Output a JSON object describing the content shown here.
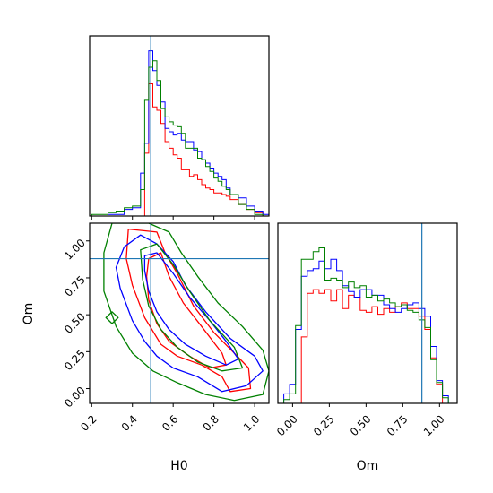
{
  "chart_data": {
    "type": "corner",
    "parameters": [
      "H0",
      "Om"
    ],
    "xlabel_bottom_left": "H0",
    "ylabel_bottom_left": "Om",
    "xlabel_bottom_right": "Om",
    "truth": {
      "H0": 0.49,
      "Om": 0.88,
      "line_color": "#1f77b4"
    },
    "series_colors": [
      "#ff0000",
      "#0000ff",
      "#008000"
    ],
    "h0_ticks": [
      "0.2",
      "0.4",
      "0.6",
      "0.8",
      "1.0"
    ],
    "om_ticks": [
      "0.00",
      "0.25",
      "0.50",
      "0.75",
      "1.00"
    ],
    "h0_range": [
      0.19,
      1.07
    ],
    "om_range": [
      -0.1,
      1.12
    ],
    "hist_h0": {
      "edges": [
        0.16,
        0.2,
        0.24,
        0.28,
        0.32,
        0.36,
        0.4,
        0.44,
        0.46,
        0.48,
        0.5,
        0.52,
        0.54,
        0.56,
        0.58,
        0.6,
        0.62,
        0.64,
        0.66,
        0.68,
        0.7,
        0.72,
        0.74,
        0.76,
        0.78,
        0.8,
        0.82,
        0.84,
        0.86,
        0.88,
        0.92,
        0.96,
        1.0,
        1.04,
        1.08
      ],
      "series": [
        {
          "values": [
            0,
            0,
            0,
            0,
            0,
            0,
            0,
            0,
            0.38,
            0.8,
            0.66,
            0.64,
            0.56,
            0.45,
            0.41,
            0.37,
            0.35,
            0.28,
            0.28,
            0.24,
            0.25,
            0.22,
            0.19,
            0.17,
            0.16,
            0.14,
            0.14,
            0.13,
            0.12,
            0.1,
            0.07,
            0.04,
            0.02,
            0.0
          ]
        },
        {
          "values": [
            0,
            0,
            0,
            0.01,
            0.01,
            0.04,
            0.05,
            0.26,
            0.44,
            1.0,
            0.88,
            0.79,
            0.69,
            0.53,
            0.51,
            0.49,
            0.5,
            0.46,
            0.45,
            0.45,
            0.4,
            0.39,
            0.34,
            0.32,
            0.29,
            0.26,
            0.24,
            0.22,
            0.17,
            0.13,
            0.11,
            0.06,
            0.03,
            0.01
          ]
        },
        {
          "values": [
            0,
            0.01,
            0.01,
            0.02,
            0.03,
            0.05,
            0.06,
            0.16,
            0.7,
            0.9,
            0.94,
            0.82,
            0.65,
            0.6,
            0.57,
            0.55,
            0.54,
            0.5,
            0.41,
            0.41,
            0.41,
            0.35,
            0.34,
            0.3,
            0.27,
            0.23,
            0.21,
            0.18,
            0.16,
            0.13,
            0.07,
            0.04,
            0.01,
            0.0
          ]
        }
      ],
      "ymax": 1.09
    },
    "hist_om": {
      "edges": [
        -0.1,
        -0.06,
        -0.02,
        0.02,
        0.06,
        0.1,
        0.14,
        0.18,
        0.22,
        0.26,
        0.3,
        0.34,
        0.38,
        0.42,
        0.46,
        0.5,
        0.54,
        0.58,
        0.62,
        0.66,
        0.7,
        0.74,
        0.78,
        0.82,
        0.86,
        0.9,
        0.94,
        0.98,
        1.02,
        1.06,
        1.1
      ],
      "series": [
        {
          "values": [
            0,
            0,
            0,
            0,
            0.35,
            0.58,
            0.6,
            0.58,
            0.6,
            0.54,
            0.6,
            0.5,
            0.57,
            0.56,
            0.49,
            0.48,
            0.51,
            0.47,
            0.5,
            0.48,
            0.51,
            0.53,
            0.5,
            0.5,
            0.46,
            0.39,
            0.24,
            0.1,
            0.0,
            0.0
          ]
        },
        {
          "values": [
            0,
            0.05,
            0.1,
            0.39,
            0.67,
            0.7,
            0.71,
            0.75,
            0.71,
            0.76,
            0.7,
            0.62,
            0.59,
            0.56,
            0.6,
            0.6,
            0.57,
            0.57,
            0.52,
            0.5,
            0.48,
            0.5,
            0.52,
            0.53,
            0.5,
            0.46,
            0.3,
            0.12,
            0.04,
            0.0
          ]
        },
        {
          "values": [
            0,
            0.02,
            0.05,
            0.41,
            0.76,
            0.76,
            0.8,
            0.82,
            0.65,
            0.66,
            0.65,
            0.61,
            0.64,
            0.61,
            0.62,
            0.56,
            0.57,
            0.54,
            0.55,
            0.53,
            0.51,
            0.52,
            0.49,
            0.48,
            0.44,
            0.4,
            0.23,
            0.11,
            0.03,
            0.0
          ]
        }
      ],
      "ymax": 0.95
    },
    "contours": [
      {
        "series": 0,
        "points": [
          [
            0.38,
            1.08
          ],
          [
            0.52,
            1.06
          ],
          [
            0.56,
            0.92
          ],
          [
            0.62,
            0.78
          ],
          [
            0.7,
            0.56
          ],
          [
            0.8,
            0.38
          ],
          [
            0.9,
            0.24
          ],
          [
            0.97,
            0.14
          ],
          [
            0.98,
            0.0
          ],
          [
            0.88,
            -0.02
          ],
          [
            0.84,
            0.08
          ],
          [
            0.74,
            0.16
          ],
          [
            0.62,
            0.22
          ],
          [
            0.54,
            0.3
          ],
          [
            0.46,
            0.48
          ],
          [
            0.4,
            0.7
          ],
          [
            0.37,
            0.88
          ]
        ]
      },
      {
        "series": 0,
        "points": [
          [
            0.48,
            0.88
          ],
          [
            0.54,
            0.92
          ],
          [
            0.58,
            0.76
          ],
          [
            0.65,
            0.58
          ],
          [
            0.74,
            0.42
          ],
          [
            0.84,
            0.24
          ],
          [
            0.86,
            0.16
          ],
          [
            0.78,
            0.14
          ],
          [
            0.68,
            0.22
          ],
          [
            0.58,
            0.32
          ],
          [
            0.52,
            0.44
          ],
          [
            0.48,
            0.6
          ],
          [
            0.47,
            0.76
          ]
        ]
      },
      {
        "series": 1,
        "points": [
          [
            0.36,
            0.96
          ],
          [
            0.44,
            1.04
          ],
          [
            0.52,
            0.98
          ],
          [
            0.6,
            0.86
          ],
          [
            0.66,
            0.7
          ],
          [
            0.76,
            0.52
          ],
          [
            0.88,
            0.34
          ],
          [
            1.0,
            0.22
          ],
          [
            1.04,
            0.12
          ],
          [
            0.96,
            0.02
          ],
          [
            0.84,
            -0.02
          ],
          [
            0.72,
            0.08
          ],
          [
            0.6,
            0.14
          ],
          [
            0.52,
            0.22
          ],
          [
            0.46,
            0.32
          ],
          [
            0.4,
            0.46
          ],
          [
            0.34,
            0.68
          ],
          [
            0.32,
            0.82
          ]
        ]
      },
      {
        "series": 1,
        "points": [
          [
            0.46,
            0.9
          ],
          [
            0.52,
            0.92
          ],
          [
            0.6,
            0.78
          ],
          [
            0.68,
            0.62
          ],
          [
            0.78,
            0.46
          ],
          [
            0.86,
            0.32
          ],
          [
            0.92,
            0.2
          ],
          [
            0.86,
            0.16
          ],
          [
            0.76,
            0.22
          ],
          [
            0.66,
            0.3
          ],
          [
            0.58,
            0.4
          ],
          [
            0.52,
            0.52
          ],
          [
            0.48,
            0.66
          ],
          [
            0.46,
            0.8
          ]
        ]
      },
      {
        "series": 2,
        "points": [
          [
            0.3,
            1.12
          ],
          [
            0.48,
            1.12
          ],
          [
            0.58,
            1.06
          ],
          [
            0.64,
            0.92
          ],
          [
            0.72,
            0.76
          ],
          [
            0.82,
            0.58
          ],
          [
            0.94,
            0.42
          ],
          [
            1.04,
            0.26
          ],
          [
            1.07,
            0.12
          ],
          [
            1.04,
            -0.04
          ],
          [
            0.9,
            -0.08
          ],
          [
            0.76,
            -0.04
          ],
          [
            0.62,
            0.04
          ],
          [
            0.5,
            0.12
          ],
          [
            0.4,
            0.24
          ],
          [
            0.32,
            0.42
          ],
          [
            0.26,
            0.66
          ],
          [
            0.26,
            0.92
          ]
        ]
      },
      {
        "series": 2,
        "points": [
          [
            0.44,
            0.94
          ],
          [
            0.52,
            0.98
          ],
          [
            0.6,
            0.84
          ],
          [
            0.68,
            0.66
          ],
          [
            0.78,
            0.46
          ],
          [
            0.9,
            0.28
          ],
          [
            0.94,
            0.14
          ],
          [
            0.84,
            0.12
          ],
          [
            0.72,
            0.18
          ],
          [
            0.62,
            0.28
          ],
          [
            0.54,
            0.4
          ],
          [
            0.48,
            0.56
          ],
          [
            0.45,
            0.74
          ]
        ]
      },
      {
        "series": 2,
        "points": [
          [
            0.27,
            0.48
          ],
          [
            0.3,
            0.52
          ],
          [
            0.33,
            0.48
          ],
          [
            0.3,
            0.44
          ]
        ]
      }
    ]
  }
}
